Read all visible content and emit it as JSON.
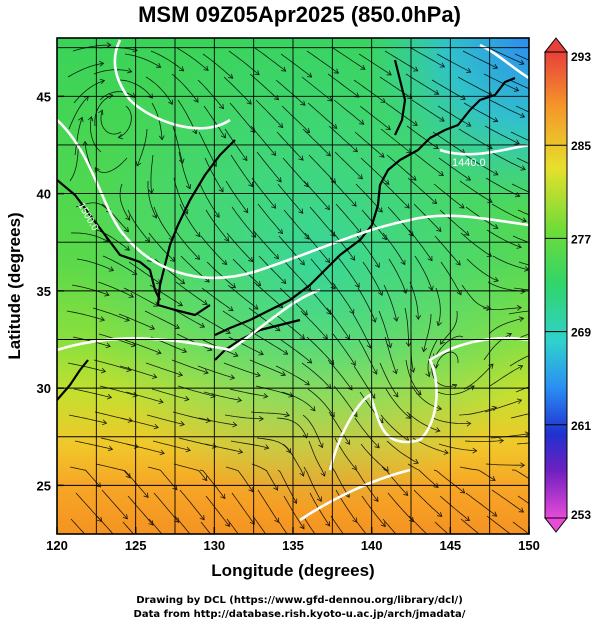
{
  "title": "MSM 09Z05Apr2025 (850.0hPa)",
  "xlabel": "Longitude (degrees)",
  "ylabel": "Latitude  (degrees)",
  "x_ticks": [
    "120",
    "125",
    "130",
    "135",
    "140",
    "145",
    "150"
  ],
  "y_ticks": [
    "25",
    "30",
    "35",
    "40",
    "45"
  ],
  "colorbar": {
    "labels": [
      "293",
      "285",
      "277",
      "269",
      "261",
      "253"
    ],
    "range": [
      253,
      293
    ]
  },
  "contour_labels": [
    "1440.0",
    "1500.0"
  ],
  "credits": {
    "line1": "Drawing by DCL (https://www.gfd-dennou.org/library/dcl/)",
    "line2": "Data from http://database.rish.kyoto-u.ac.jp/arch/jmadata/"
  },
  "chart_data": {
    "type": "heatmap",
    "variable": "temperature with streamlines and geopotential contours",
    "xlim": [
      120,
      150
    ],
    "ylim": [
      22.5,
      48
    ],
    "colorbar_range": [
      253,
      293
    ],
    "grid": true
  }
}
